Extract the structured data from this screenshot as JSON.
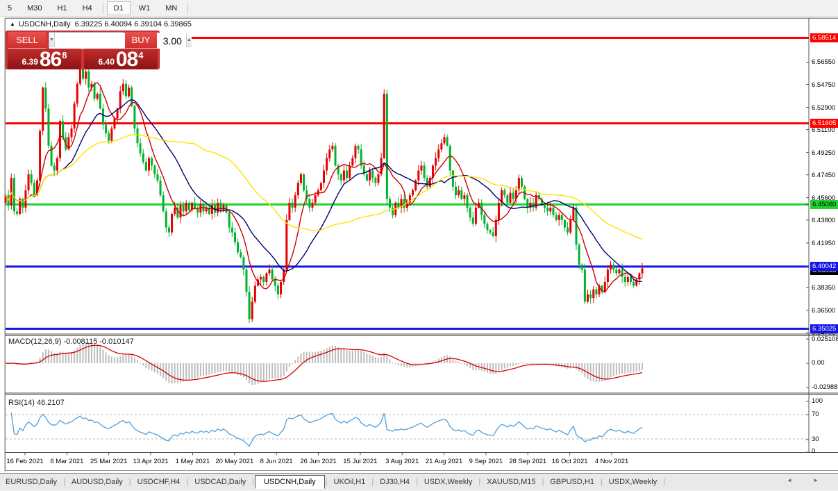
{
  "toolbar": {
    "timeframes": [
      "5",
      "M30",
      "H1",
      "H4",
      "D1",
      "W1",
      "MN"
    ],
    "active_timeframe": "D1"
  },
  "chart_header": {
    "collapse_icon": "▲",
    "symbol": "USDCNH,Daily",
    "ohlc_text": "6.39225 6.40094 6.39104 6.39865"
  },
  "trade_panel": {
    "sell_label": "SELL",
    "buy_label": "BUY",
    "volume": "3.00",
    "spin_down_icon": "▼",
    "spin_up_icon": "▲",
    "sell_price_small": "6.39",
    "sell_price_big": "86",
    "sell_price_sup": "8",
    "buy_price_small": "6.40",
    "buy_price_big": "08",
    "buy_price_sup": "4"
  },
  "price_axis": {
    "labels": [
      "6.56550",
      "6.54750",
      "6.52900",
      "6.51100",
      "6.49250",
      "6.47450",
      "6.45600",
      "6.43800",
      "6.41950",
      "6.38350",
      "6.36500",
      "6.34700"
    ],
    "current_price_badge": {
      "value": "6.39865",
      "price": 6.39865,
      "bg": "#000000",
      "fg": "#ffffff"
    }
  },
  "levels": [
    {
      "value": "6.58514",
      "price": 6.58514,
      "color": "#fe0000",
      "badge_fg": "#ffffff",
      "width": 3
    },
    {
      "value": "6.51605",
      "price": 6.51605,
      "color": "#fe0000",
      "badge_fg": "#ffffff",
      "width": 3
    },
    {
      "value": "6.45060",
      "price": 6.4506,
      "color": "#1fd430",
      "badge_fg": "#000000",
      "width": 3
    },
    {
      "value": "6.40042",
      "price": 6.40042,
      "color": "#1515e8",
      "badge_fg": "#ffffff",
      "width": 3
    },
    {
      "value": "6.35025",
      "price": 6.35025,
      "color": "#1515e8",
      "badge_fg": "#ffffff",
      "width": 3
    }
  ],
  "macd_pane": {
    "label": "MACD(12,26,9)",
    "values": "-0.008115 -0.010147",
    "axis_labels": [
      "0.025108",
      "0.00",
      "-0.02988"
    ]
  },
  "rsi_pane": {
    "label": "RSI(14)",
    "value": "46.2107",
    "axis_labels": [
      "100",
      "70",
      "30",
      "0"
    ],
    "level_lines": [
      70,
      30
    ]
  },
  "dates": [
    "16 Feb 2021",
    "6 Mar 2021",
    "25 Mar 2021",
    "13 Apr 2021",
    "1 May 2021",
    "20 May 2021",
    "8 Jun 2021",
    "26 Jun 2021",
    "15 Jul 2021",
    "3 Aug 2021",
    "21 Aug 2021",
    "9 Sep 2021",
    "28 Sep 2021",
    "16 Oct 2021",
    "4 Nov 2021"
  ],
  "tabs": {
    "items": [
      "EURUSD,Daily",
      "AUDUSD,Daily",
      "USDCHF,H4",
      "USDCAD,Daily",
      "USDCNH,Daily",
      "UKOil,H1",
      "DJ30,H4",
      "USDX,Weekly",
      "XAUUSD,M15",
      "GBPUSD,H1",
      "USDX,Weekly"
    ],
    "active_index": 4,
    "scroll_left_icon": "◄",
    "scroll_right_icon": "►"
  },
  "chart_data": {
    "type": "candlestick",
    "symbol": "USDCNH",
    "timeframe": "Daily",
    "x_axis_dates": [
      "16 Feb 2021",
      "6 Mar 2021",
      "25 Mar 2021",
      "13 Apr 2021",
      "1 May 2021",
      "20 May 2021",
      "8 Jun 2021",
      "26 Jun 2021",
      "15 Jul 2021",
      "3 Aug 2021",
      "21 Aug 2021",
      "9 Sep 2021",
      "28 Sep 2021",
      "16 Oct 2021",
      "4 Nov 2021"
    ],
    "y_axis": {
      "min": 6.3465,
      "max": 6.5955
    },
    "up_color": "#e60000",
    "down_color": "#00b32c",
    "closes": [
      6.458,
      6.45,
      6.472,
      6.445,
      6.443,
      6.455,
      6.448,
      6.462,
      6.475,
      6.468,
      6.458,
      6.47,
      6.51,
      6.545,
      6.528,
      6.498,
      6.482,
      6.478,
      6.488,
      6.518,
      6.505,
      6.495,
      6.505,
      6.512,
      6.532,
      6.548,
      6.565,
      6.552,
      6.558,
      6.545,
      6.548,
      6.536,
      6.54,
      6.528,
      6.515,
      6.508,
      6.502,
      6.512,
      6.52,
      6.528,
      6.542,
      6.548,
      6.538,
      6.545,
      6.53,
      6.512,
      6.5,
      6.492,
      6.485,
      6.478,
      6.488,
      6.482,
      6.475,
      6.47,
      6.458,
      6.445,
      6.432,
      6.428,
      6.443,
      6.448,
      6.44,
      6.45,
      6.445,
      6.452,
      6.446,
      6.452,
      6.447,
      6.444,
      6.451,
      6.445,
      6.448,
      6.443,
      6.45,
      6.444,
      6.452,
      6.446,
      6.45,
      6.444,
      6.432,
      6.428,
      6.42,
      6.412,
      6.408,
      6.398,
      6.38,
      6.358,
      6.372,
      6.385,
      6.39,
      6.392,
      6.388,
      6.395,
      6.398,
      6.39,
      6.385,
      6.378,
      6.388,
      6.398,
      6.438,
      6.452,
      6.448,
      6.458,
      6.468,
      6.475,
      6.462,
      6.455,
      6.448,
      6.452,
      6.458,
      6.462,
      6.468,
      6.478,
      6.488,
      6.495,
      6.498,
      6.482,
      6.475,
      6.47,
      6.478,
      6.472,
      6.482,
      6.488,
      6.498,
      6.495,
      6.482,
      6.475,
      6.47,
      6.478,
      6.472,
      6.468,
      6.475,
      6.488,
      6.54,
      6.455,
      6.448,
      6.442,
      6.452,
      6.448,
      6.455,
      6.448,
      6.452,
      6.458,
      6.462,
      6.47,
      6.478,
      6.482,
      6.472,
      6.465,
      6.472,
      6.482,
      6.488,
      6.495,
      6.5,
      6.505,
      6.498,
      6.478,
      6.465,
      6.458,
      6.462,
      6.455,
      6.458,
      6.448,
      6.44,
      6.435,
      6.448,
      6.452,
      6.442,
      6.435,
      6.43,
      6.428,
      6.425,
      6.438,
      6.452,
      6.462,
      6.458,
      6.452,
      6.46,
      6.455,
      6.462,
      6.472,
      6.465,
      6.455,
      6.448,
      6.452,
      6.448,
      6.458,
      6.455,
      6.45,
      6.448,
      6.445,
      6.448,
      6.442,
      6.438,
      6.442,
      6.438,
      6.432,
      6.428,
      6.438,
      6.448,
      6.418,
      6.402,
      6.398,
      6.372,
      6.378,
      6.375,
      6.382,
      6.378,
      6.385,
      6.38,
      6.388,
      6.398,
      6.402,
      6.398,
      6.395,
      6.398,
      6.392,
      6.388,
      6.392,
      6.388,
      6.385,
      6.39,
      6.395,
      6.399
    ],
    "first_open": 6.452,
    "moving_averages": [
      {
        "name": "ma-fast",
        "period": 8,
        "color": "#cc0000"
      },
      {
        "name": "ma-medium",
        "period": 21,
        "color": "#000070"
      },
      {
        "name": "ma-slow",
        "period": 55,
        "color": "#ffe100"
      }
    ],
    "macd": {
      "fast": 12,
      "slow": 26,
      "signal": 9,
      "hist_color": "#bdbdbd",
      "signal_color": "#d40000",
      "axis_max": 0.025108,
      "axis_min": -0.02988
    },
    "rsi": {
      "period": 14,
      "color": "#4d9fdc",
      "last_value": 46.2107,
      "levels": [
        70,
        30
      ]
    }
  }
}
